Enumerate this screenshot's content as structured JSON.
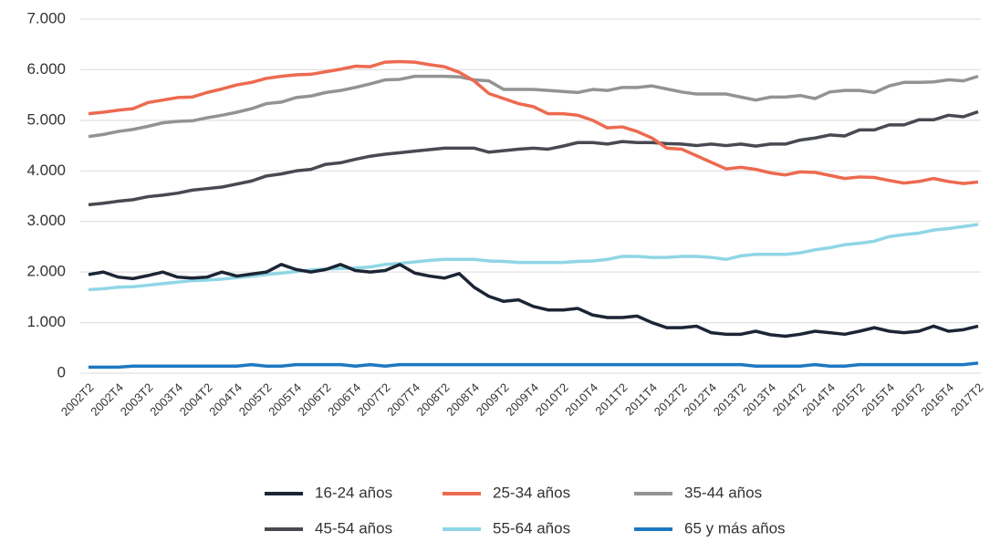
{
  "chart_data": {
    "type": "line",
    "categories": [
      "2002T2",
      null,
      "2002T4",
      null,
      "2003T2",
      null,
      "2003T4",
      null,
      "2004T2",
      null,
      "2004T4",
      null,
      "2005T2",
      null,
      "2005T4",
      null,
      "2006T2",
      null,
      "2006T4",
      null,
      "2007T2",
      null,
      "2007T4",
      null,
      "2008T2",
      null,
      "2008T4",
      null,
      "2009T2",
      null,
      "2009T4",
      null,
      "2010T2",
      null,
      "2010T4",
      null,
      "2011T2",
      null,
      "2011T4",
      null,
      "2012T2",
      null,
      "2012T4",
      null,
      "2013T2",
      null,
      "2013T4",
      null,
      "2014T2",
      null,
      "2014T4",
      null,
      "2015T2",
      null,
      "2015T4",
      null,
      "2016T2",
      null,
      "2016T4",
      null,
      "2017T2"
    ],
    "series": [
      {
        "name": "16-24 años",
        "color": "#1c2535",
        "values": [
          1950,
          2000,
          1900,
          1870,
          1930,
          2000,
          1900,
          1880,
          1900,
          2000,
          1920,
          1960,
          2000,
          2150,
          2050,
          2000,
          2050,
          2150,
          2030,
          2000,
          2030,
          2150,
          1980,
          1920,
          1880,
          1970,
          1700,
          1520,
          1420,
          1450,
          1320,
          1250,
          1250,
          1280,
          1150,
          1100,
          1100,
          1130,
          1000,
          900,
          900,
          930,
          800,
          770,
          770,
          830,
          760,
          730,
          770,
          830,
          800,
          770,
          830,
          900,
          830,
          800,
          830,
          930,
          830,
          860,
          930
        ]
      },
      {
        "name": "25-34 años",
        "color": "#ec6a50",
        "values": [
          5130,
          5160,
          5200,
          5230,
          5350,
          5400,
          5450,
          5460,
          5550,
          5620,
          5700,
          5750,
          5830,
          5870,
          5900,
          5910,
          5960,
          6010,
          6070,
          6060,
          6150,
          6160,
          6150,
          6100,
          6060,
          5950,
          5780,
          5530,
          5430,
          5330,
          5270,
          5130,
          5130,
          5100,
          5000,
          4850,
          4870,
          4780,
          4650,
          4450,
          4430,
          4300,
          4170,
          4040,
          4070,
          4030,
          3960,
          3920,
          3980,
          3970,
          3910,
          3850,
          3880,
          3870,
          3810,
          3760,
          3790,
          3850,
          3790,
          3750,
          3780
        ]
      },
      {
        "name": "35-44 años",
        "color": "#939393",
        "values": [
          4680,
          4720,
          4780,
          4820,
          4880,
          4950,
          4980,
          4990,
          5050,
          5100,
          5160,
          5230,
          5330,
          5360,
          5450,
          5480,
          5550,
          5590,
          5650,
          5720,
          5800,
          5810,
          5870,
          5870,
          5870,
          5860,
          5800,
          5780,
          5610,
          5610,
          5610,
          5590,
          5570,
          5550,
          5610,
          5590,
          5650,
          5650,
          5680,
          5620,
          5560,
          5520,
          5520,
          5520,
          5460,
          5400,
          5460,
          5460,
          5490,
          5430,
          5560,
          5590,
          5590,
          5550,
          5680,
          5750,
          5750,
          5760,
          5800,
          5780,
          5870
        ]
      },
      {
        "name": "45-54 años",
        "color": "#484a52",
        "values": [
          3330,
          3360,
          3400,
          3430,
          3490,
          3520,
          3560,
          3620,
          3650,
          3680,
          3740,
          3800,
          3900,
          3940,
          4000,
          4030,
          4130,
          4160,
          4230,
          4290,
          4330,
          4360,
          4390,
          4420,
          4450,
          4450,
          4450,
          4370,
          4400,
          4430,
          4450,
          4430,
          4490,
          4560,
          4560,
          4530,
          4580,
          4560,
          4560,
          4540,
          4530,
          4500,
          4530,
          4500,
          4530,
          4490,
          4530,
          4530,
          4610,
          4650,
          4710,
          4690,
          4810,
          4810,
          4910,
          4910,
          5010,
          5010,
          5100,
          5070,
          5170
        ]
      },
      {
        "name": "55-64 años",
        "color": "#8fd6e6",
        "values": [
          1650,
          1670,
          1700,
          1710,
          1740,
          1770,
          1800,
          1830,
          1840,
          1860,
          1890,
          1920,
          1950,
          1980,
          2010,
          2040,
          2060,
          2070,
          2080,
          2100,
          2150,
          2170,
          2200,
          2230,
          2250,
          2250,
          2250,
          2220,
          2210,
          2190,
          2190,
          2190,
          2190,
          2210,
          2220,
          2250,
          2310,
          2310,
          2290,
          2290,
          2310,
          2310,
          2290,
          2250,
          2320,
          2350,
          2350,
          2350,
          2380,
          2440,
          2480,
          2540,
          2570,
          2610,
          2700,
          2740,
          2770,
          2830,
          2860,
          2900,
          2940
        ]
      },
      {
        "name": "65 y más años",
        "color": "#1d78c1",
        "values": [
          120,
          120,
          120,
          140,
          140,
          140,
          140,
          140,
          140,
          140,
          140,
          170,
          140,
          140,
          170,
          170,
          170,
          170,
          140,
          170,
          140,
          170,
          170,
          170,
          170,
          170,
          170,
          170,
          170,
          170,
          170,
          170,
          170,
          170,
          170,
          170,
          170,
          170,
          170,
          170,
          170,
          170,
          170,
          170,
          170,
          140,
          140,
          140,
          140,
          170,
          140,
          140,
          170,
          170,
          170,
          170,
          170,
          170,
          170,
          170,
          200
        ]
      }
    ],
    "ylim": [
      0,
      7000
    ],
    "yticks": [
      0,
      {
        "value": 1000,
        "label": "1.000"
      },
      {
        "value": 2000,
        "label": "2.000"
      },
      {
        "value": 3000,
        "label": "3.000"
      },
      {
        "value": 4000,
        "label": "4.000"
      },
      {
        "value": 5000,
        "label": "5.000"
      },
      {
        "value": 6000,
        "label": "6.000"
      },
      {
        "value": 7000,
        "label": "7.000"
      }
    ],
    "grid": true
  }
}
